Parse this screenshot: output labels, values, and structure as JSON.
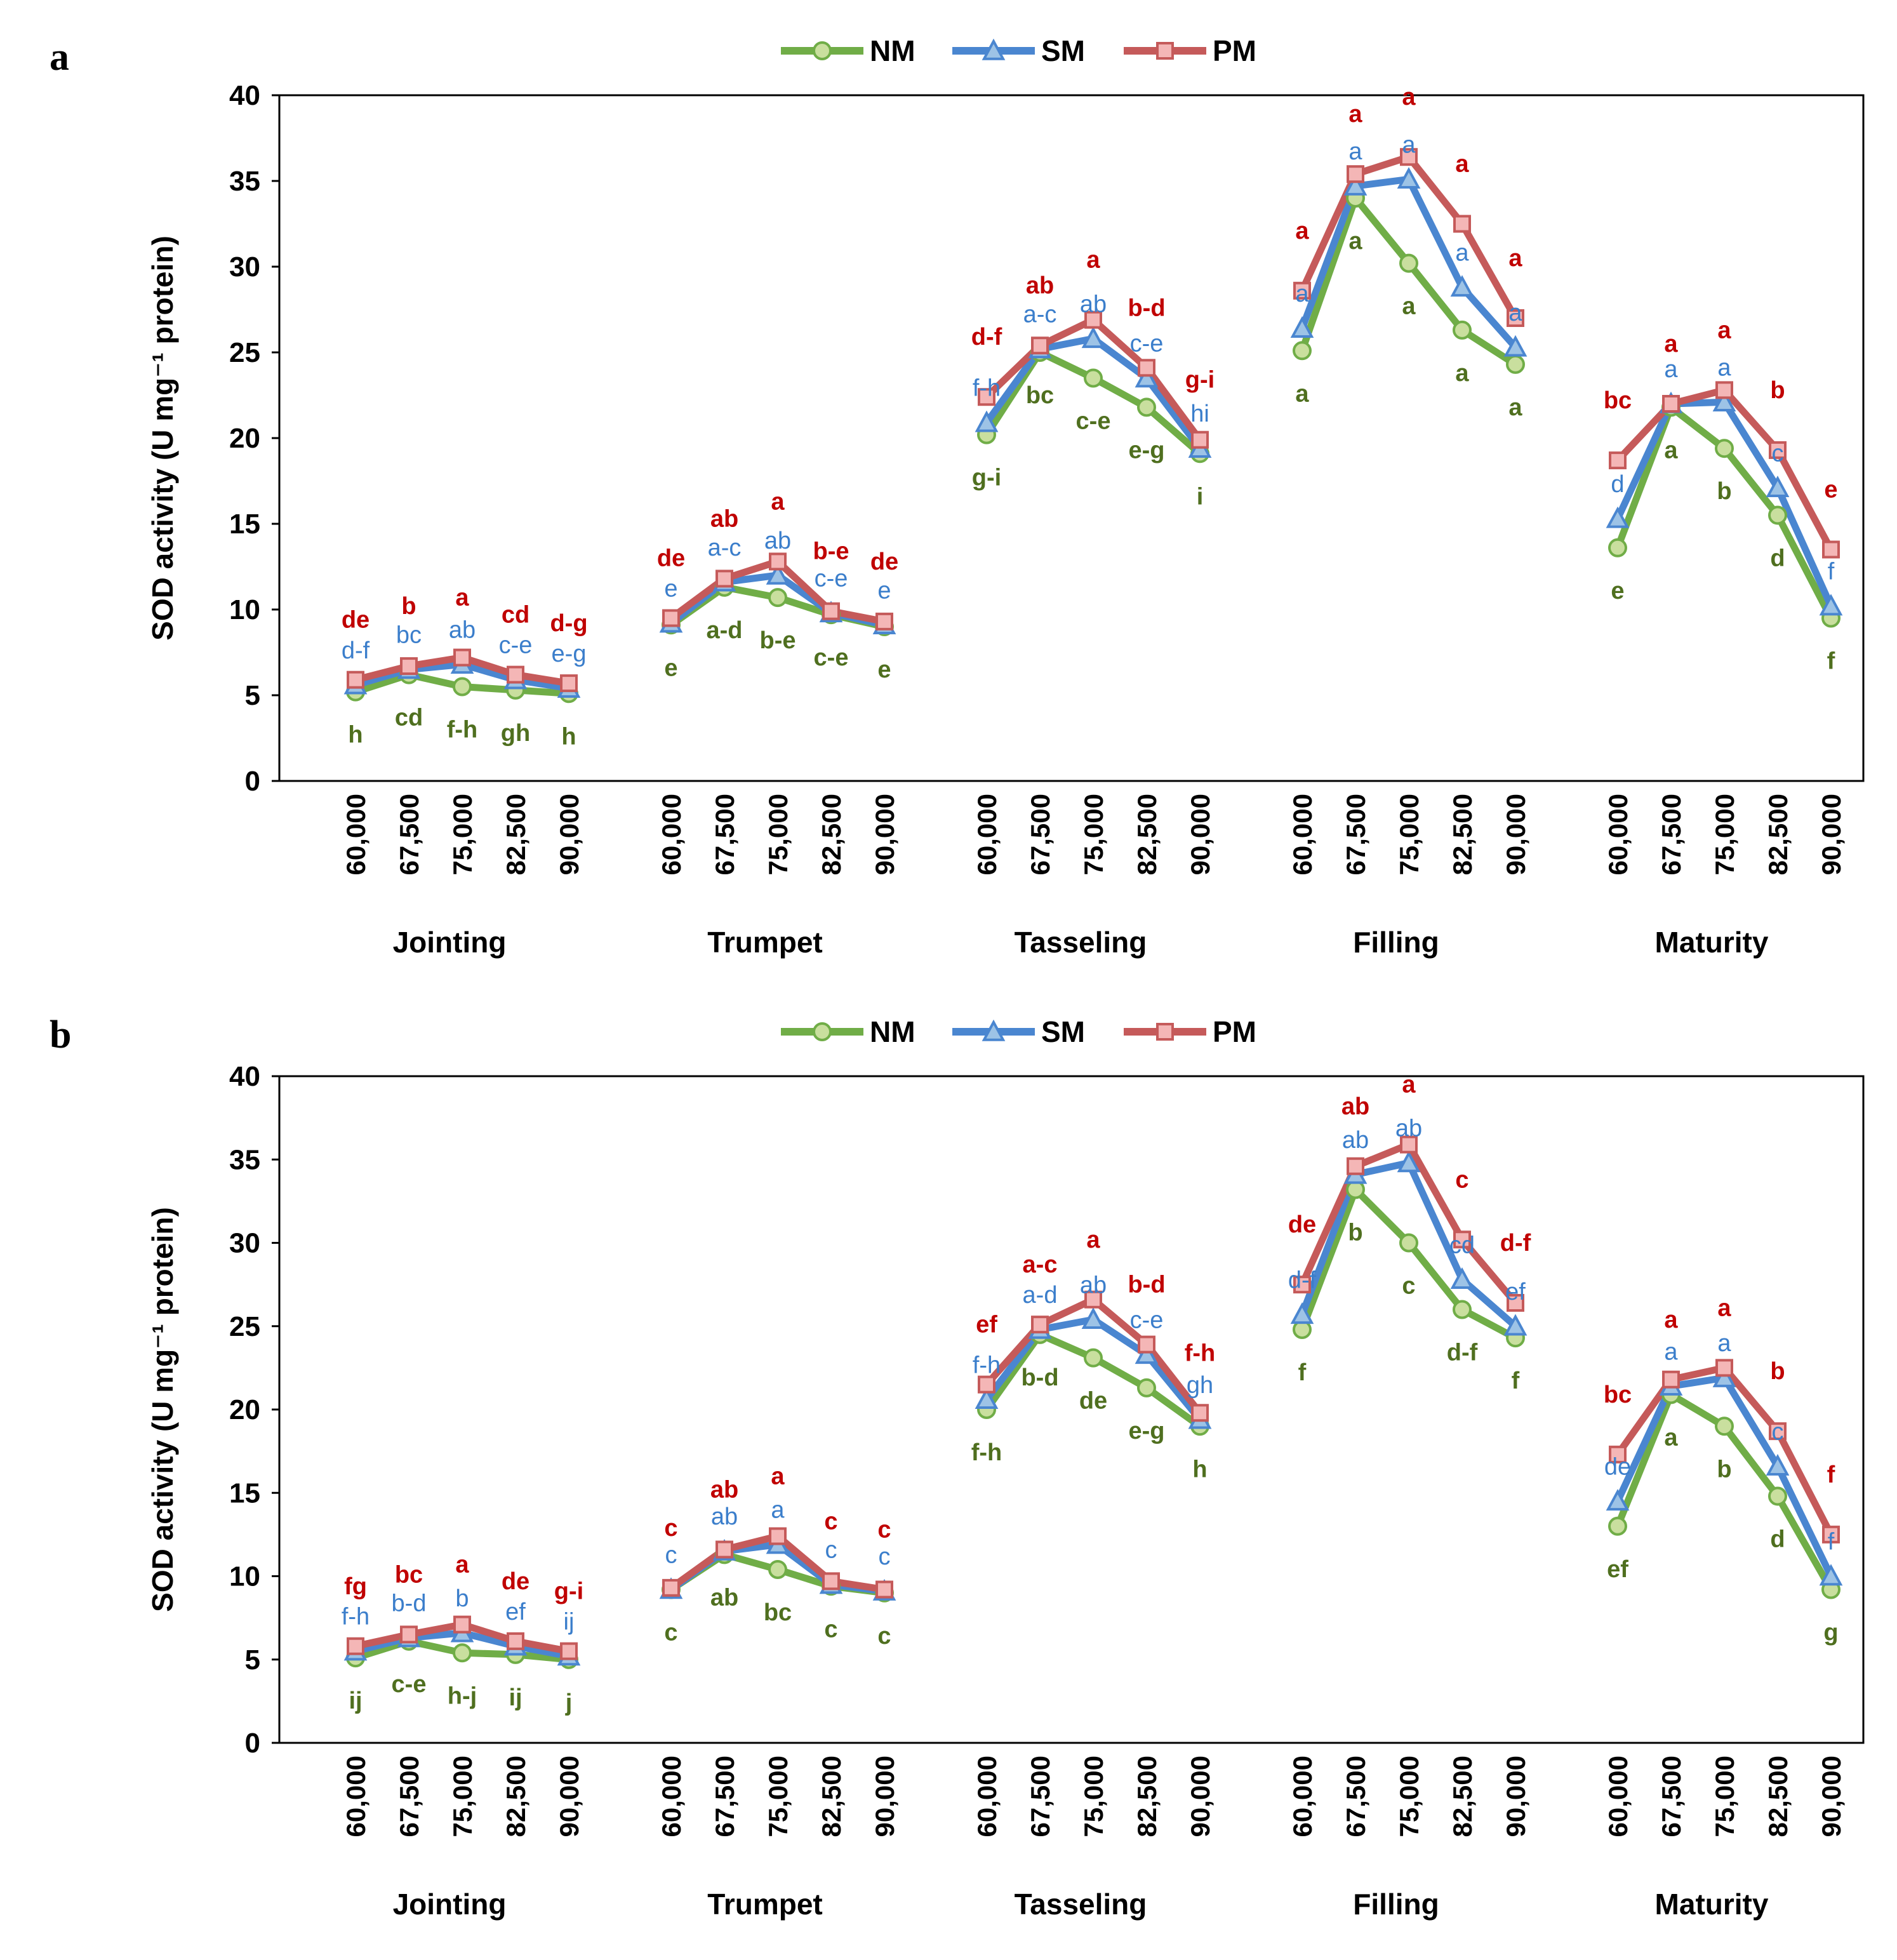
{
  "colors": {
    "NM": "#70ad47",
    "SM": "#4a86d0",
    "PM": "#c55a5a",
    "NM_text": "#4f6f1f",
    "SM_text": "#3b7ecb",
    "PM_text": "#c00000"
  },
  "chart_data": [
    {
      "panel": "a",
      "type": "line",
      "ylabel": "SOD activity (U mg⁻¹ protein)",
      "ylim": [
        0,
        40
      ],
      "yticks": [
        "0",
        "5",
        "10",
        "15",
        "20",
        "25",
        "30",
        "35",
        "40"
      ],
      "legend": [
        "NM",
        "SM",
        "PM"
      ],
      "legend_position": "top-center",
      "categories": [
        "60,000",
        "67,500",
        "75,000",
        "82,500",
        "90,000"
      ],
      "stages": [
        "Jointing",
        "Trumpet",
        "Tasseling",
        "Filling",
        "Maturity"
      ],
      "series": [
        {
          "name": "NM",
          "values": [
            [
              5.2,
              6.2,
              5.5,
              5.3,
              5.1
            ],
            [
              9.1,
              11.3,
              10.7,
              9.7,
              9.0
            ],
            [
              20.2,
              25.0,
              23.5,
              21.8,
              19.1
            ],
            [
              25.1,
              34.0,
              30.2,
              26.3,
              24.3
            ],
            [
              13.6,
              21.8,
              19.4,
              15.5,
              9.5
            ]
          ],
          "letters": [
            [
              "h",
              "cd",
              "f-h",
              "gh",
              "h"
            ],
            [
              "e",
              "a-d",
              "b-e",
              "c-e",
              "e"
            ],
            [
              "g-i",
              "bc",
              "c-e",
              "e-g",
              "i"
            ],
            [
              "a",
              "a",
              "a",
              "a",
              "a"
            ],
            [
              "e",
              "a",
              "b",
              "d",
              "f"
            ]
          ]
        },
        {
          "name": "SM",
          "values": [
            [
              5.6,
              6.5,
              6.8,
              5.9,
              5.4
            ],
            [
              9.2,
              11.6,
              12.0,
              9.8,
              9.1
            ],
            [
              20.9,
              25.2,
              25.8,
              23.5,
              19.4
            ],
            [
              26.4,
              34.7,
              35.1,
              28.8,
              25.3
            ],
            [
              15.3,
              22.0,
              22.1,
              17.1,
              10.2
            ]
          ],
          "letters": [
            [
              "d-f",
              "bc",
              "ab",
              "c-e",
              "e-g"
            ],
            [
              "e",
              "a-c",
              "ab",
              "c-e",
              "e"
            ],
            [
              "f-h",
              "a-c",
              "ab",
              "c-e",
              "hi"
            ],
            [
              "a",
              "a",
              "a",
              "a",
              "a"
            ],
            [
              "d",
              "a",
              "a",
              "c",
              "f"
            ]
          ]
        },
        {
          "name": "PM",
          "values": [
            [
              5.9,
              6.7,
              7.2,
              6.2,
              5.7
            ],
            [
              9.5,
              11.8,
              12.8,
              9.9,
              9.3
            ],
            [
              22.4,
              25.4,
              26.9,
              24.1,
              19.9
            ],
            [
              28.6,
              35.4,
              36.4,
              32.5,
              27.0
            ],
            [
              18.7,
              22.0,
              22.8,
              19.3,
              13.5
            ]
          ],
          "letters": [
            [
              "de",
              "b",
              "a",
              "cd",
              "d-g"
            ],
            [
              "de",
              "ab",
              "a",
              "b-e",
              "de"
            ],
            [
              "d-f",
              "ab",
              "a",
              "b-d",
              "g-i"
            ],
            [
              "a",
              "a",
              "a",
              "a",
              "a"
            ],
            [
              "bc",
              "a",
              "a",
              "b",
              "e"
            ]
          ]
        }
      ]
    },
    {
      "panel": "b",
      "type": "line",
      "ylabel": "SOD activity (U mg⁻¹ protein)",
      "ylim": [
        0,
        40
      ],
      "yticks": [
        "0",
        "5",
        "10",
        "15",
        "20",
        "25",
        "30",
        "35",
        "40"
      ],
      "legend": [
        "NM",
        "SM",
        "PM"
      ],
      "legend_position": "top-center",
      "categories": [
        "60,000",
        "67,500",
        "75,000",
        "82,500",
        "90,000"
      ],
      "stages": [
        "Jointing",
        "Trumpet",
        "Tasseling",
        "Filling",
        "Maturity"
      ],
      "series": [
        {
          "name": "NM",
          "values": [
            [
              5.1,
              6.1,
              5.4,
              5.3,
              5.0
            ],
            [
              9.2,
              11.3,
              10.4,
              9.4,
              9.0
            ],
            [
              20.0,
              24.5,
              23.1,
              21.3,
              19.0
            ],
            [
              24.8,
              33.2,
              30.0,
              26.0,
              24.3
            ],
            [
              13.0,
              20.9,
              19.0,
              14.8,
              9.2
            ]
          ],
          "letters": [
            [
              "ij",
              "c-e",
              "h-j",
              "ij",
              "j"
            ],
            [
              "c",
              "ab",
              "bc",
              "c",
              "c"
            ],
            [
              "f-h",
              "b-d",
              "de",
              "e-g",
              "h"
            ],
            [
              "f",
              "b",
              "c",
              "d-f",
              "f"
            ],
            [
              "ef",
              "a",
              "b",
              "d",
              "g"
            ]
          ]
        },
        {
          "name": "SM",
          "values": [
            [
              5.5,
              6.3,
              6.6,
              5.8,
              5.2
            ],
            [
              9.2,
              11.5,
              11.9,
              9.5,
              9.1
            ],
            [
              20.6,
              24.8,
              25.4,
              23.3,
              19.4
            ],
            [
              25.7,
              34.1,
              34.8,
              27.8,
              25.0
            ],
            [
              14.5,
              21.4,
              21.9,
              16.6,
              10.0
            ]
          ],
          "letters": [
            [
              "f-h",
              "b-d",
              "b",
              "ef",
              "ij"
            ],
            [
              "c",
              "ab",
              "a",
              "c",
              "c"
            ],
            [
              "f-h",
              "a-d",
              "ab",
              "c-e",
              "gh"
            ],
            [
              "d-f",
              "ab",
              "ab",
              "cd",
              "ef"
            ],
            [
              "de",
              "a",
              "a",
              "c",
              "f"
            ]
          ]
        },
        {
          "name": "PM",
          "values": [
            [
              5.8,
              6.5,
              7.1,
              6.1,
              5.5
            ],
            [
              9.3,
              11.6,
              12.4,
              9.7,
              9.2
            ],
            [
              21.5,
              25.1,
              26.6,
              23.9,
              19.8
            ],
            [
              27.5,
              34.6,
              35.9,
              30.2,
              26.4
            ],
            [
              17.3,
              21.8,
              22.5,
              18.7,
              12.5
            ]
          ],
          "letters": [
            [
              "fg",
              "bc",
              "a",
              "de",
              "g-i"
            ],
            [
              "c",
              "ab",
              "a",
              "c",
              "c"
            ],
            [
              "ef",
              "a-c",
              "a",
              "b-d",
              "f-h"
            ],
            [
              "de",
              "ab",
              "a",
              "c",
              "d-f"
            ],
            [
              "bc",
              "a",
              "a",
              "b",
              "f"
            ]
          ]
        }
      ]
    }
  ]
}
